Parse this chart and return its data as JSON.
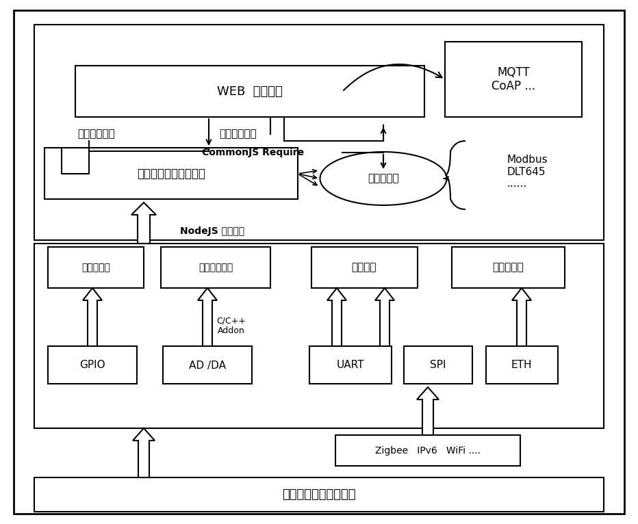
{
  "fig_width": 9.32,
  "fig_height": 7.66,
  "dpi": 100,
  "bg_color": "#ffffff",
  "labels": {
    "web_pub": "WEB  数据发布",
    "mqtt": "MQTT\nCoAP ...",
    "channel_param": "通道参数配置",
    "driver_online": "驱动在线生成",
    "commonjs": "CommonJS Require",
    "channel_adapt": "通道适配（工厂模式）",
    "hot_swap": "热替换驱动",
    "modbus": "Modbus\nDLT645\n......",
    "nodejs": "NodeJS 动态解析",
    "shu_tong": "数值量通道",
    "mo_tong": "模拟量量通道",
    "serial_tong": "串行通道",
    "eth_tong": "以太网通道",
    "gpio": "GPIO",
    "adda": "AD /DA",
    "uart": "UART",
    "spi": "SPI",
    "eth_hw": "ETH",
    "cc_addon": "C/C++\nAddon",
    "zigbee": "Zigbee   IPv6   WiFi ....",
    "sensor": "各类工业仪表及传感器"
  }
}
